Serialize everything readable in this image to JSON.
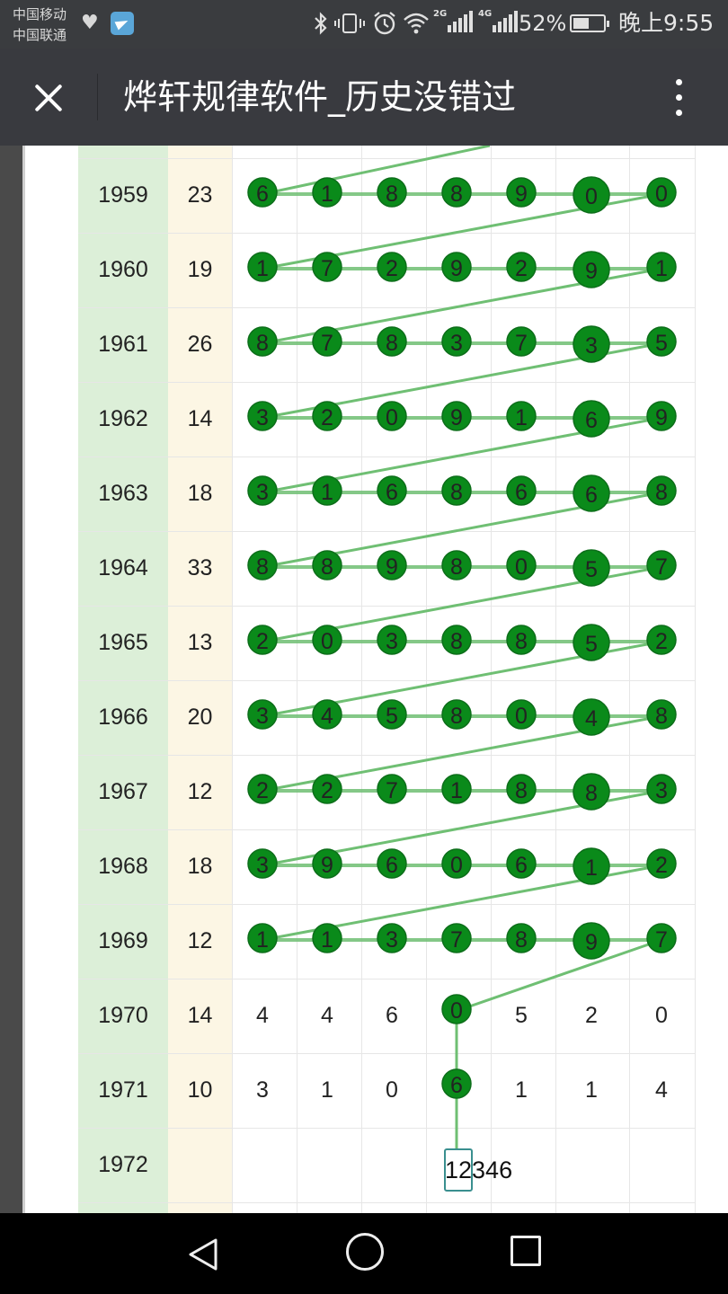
{
  "status_bar": {
    "carrier_1": "中国移动",
    "carrier_2": "中国联通",
    "sig1_tag": "2G",
    "sig2_tag": "4G",
    "battery": "52%",
    "time": "晚上9:55",
    "icons": [
      "heart-icon",
      "telegram-icon",
      "bluetooth-icon",
      "vibrate-icon",
      "alarm-icon",
      "wifi-icon",
      "signal-icon",
      "battery-icon"
    ]
  },
  "title_bar": {
    "title": "烨轩规律软件_历史没错过",
    "close_icon": "close-icon",
    "more_icon": "more-vertical-icon"
  },
  "table": {
    "rows": [
      {
        "year": "1959",
        "sum": "23",
        "digits": [
          "6",
          "1",
          "8",
          "8",
          "9",
          "0",
          "0"
        ],
        "hit": true
      },
      {
        "year": "1960",
        "sum": "19",
        "digits": [
          "1",
          "7",
          "2",
          "9",
          "2",
          "9",
          "1"
        ],
        "hit": true
      },
      {
        "year": "1961",
        "sum": "26",
        "digits": [
          "8",
          "7",
          "8",
          "3",
          "7",
          "3",
          "5"
        ],
        "hit": true
      },
      {
        "year": "1962",
        "sum": "14",
        "digits": [
          "3",
          "2",
          "0",
          "9",
          "1",
          "6",
          "9"
        ],
        "hit": true
      },
      {
        "year": "1963",
        "sum": "18",
        "digits": [
          "3",
          "1",
          "6",
          "8",
          "6",
          "6",
          "8"
        ],
        "hit": true
      },
      {
        "year": "1964",
        "sum": "33",
        "digits": [
          "8",
          "8",
          "9",
          "8",
          "0",
          "5",
          "7"
        ],
        "hit": true
      },
      {
        "year": "1965",
        "sum": "13",
        "digits": [
          "2",
          "0",
          "3",
          "8",
          "8",
          "5",
          "2"
        ],
        "hit": true
      },
      {
        "year": "1966",
        "sum": "20",
        "digits": [
          "3",
          "4",
          "5",
          "8",
          "0",
          "4",
          "8"
        ],
        "hit": true
      },
      {
        "year": "1967",
        "sum": "12",
        "digits": [
          "2",
          "2",
          "7",
          "1",
          "8",
          "8",
          "3"
        ],
        "hit": true
      },
      {
        "year": "1968",
        "sum": "18",
        "digits": [
          "3",
          "9",
          "6",
          "0",
          "6",
          "1",
          "2"
        ],
        "hit": true
      },
      {
        "year": "1969",
        "sum": "12",
        "digits": [
          "1",
          "1",
          "3",
          "7",
          "8",
          "9",
          "7"
        ],
        "hit": true
      },
      {
        "year": "1970",
        "sum": "14",
        "digits": [
          "4",
          "4",
          "6",
          "0",
          "5",
          "2",
          "0"
        ],
        "hit": false,
        "marked_col": 3
      },
      {
        "year": "1971",
        "sum": "10",
        "digits": [
          "3",
          "1",
          "0",
          "6",
          "1",
          "1",
          "4"
        ],
        "hit": false,
        "marked_col": 3
      },
      {
        "year": "1972",
        "sum": "",
        "digits": [
          "",
          "",
          "",
          "",
          "",
          "",
          ""
        ],
        "hit": false
      }
    ],
    "candidate": "12346",
    "colors": {
      "marker": "#0a8a1a",
      "marker_border": "#0d6e1a",
      "line": "#6fbf73",
      "year_bg": "#dcefd8",
      "sum_bg": "#fcf6e4"
    }
  },
  "nav_bar": {
    "icons": [
      "back-icon",
      "home-icon",
      "recent-apps-icon"
    ]
  }
}
